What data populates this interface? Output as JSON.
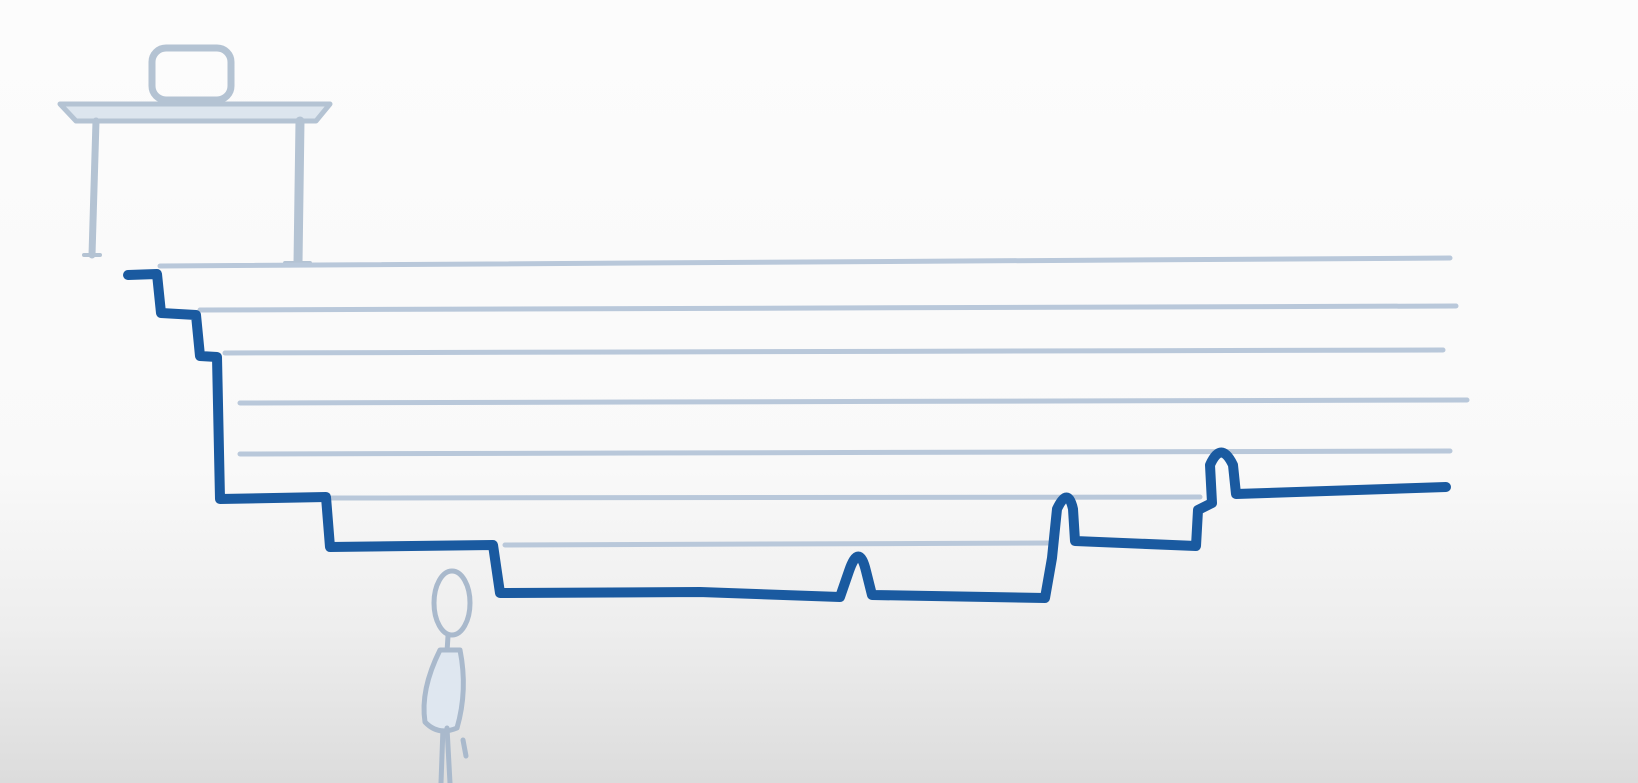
{
  "scene": {
    "kind": "hand-drawn whiteboard sketch",
    "elements": [
      "desk-with-box",
      "horizontal-level-lines",
      "stepped-path-line",
      "stick-figure"
    ],
    "colors": {
      "background": "#f9f9f9",
      "path": "#1a5aa0",
      "level_lines": "#b9c8da",
      "desk": "#b4c3d3",
      "figure": "#a9b9cc"
    },
    "level_line_count": 7
  }
}
